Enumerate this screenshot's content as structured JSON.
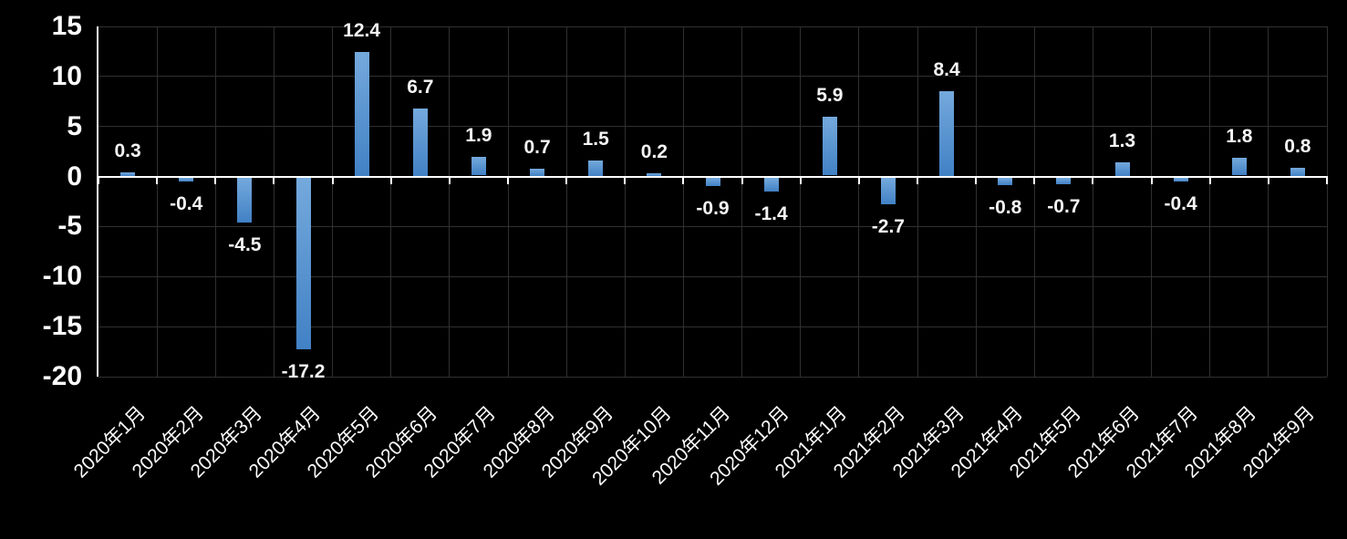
{
  "chart_data": {
    "type": "bar",
    "title": "",
    "xlabel": "",
    "ylabel": "",
    "categories": [
      "2020年1月",
      "2020年2月",
      "2020年3月",
      "2020年4月",
      "2020年5月",
      "2020年6月",
      "2020年7月",
      "2020年8月",
      "2020年9月",
      "2020年10月",
      "2020年11月",
      "2020年12月",
      "2021年1月",
      "2021年2月",
      "2021年3月",
      "2021年4月",
      "2021年5月",
      "2021年6月",
      "2021年7月",
      "2021年8月",
      "2021年9月"
    ],
    "values": [
      0.3,
      -0.4,
      -4.5,
      -17.2,
      12.4,
      6.7,
      1.9,
      0.7,
      1.5,
      0.2,
      -0.9,
      -1.4,
      5.9,
      -2.7,
      8.4,
      -0.8,
      -0.7,
      1.3,
      -0.4,
      1.8,
      0.8
    ],
    "data_labels": [
      "0.3",
      "-0.4",
      "-4.5",
      "-17.2",
      "12.4",
      "6.7",
      "1.9",
      "0.7",
      "1.5",
      "0.2",
      "-0.9",
      "-1.4",
      "5.9",
      "-2.7",
      "8.4",
      "-0.8",
      "-0.7",
      "1.3",
      "-0.4",
      "1.8",
      "0.8"
    ],
    "y_ticks": [
      15,
      10,
      5,
      0,
      -5,
      -10,
      -15,
      -20
    ],
    "ylim": [
      -20,
      15
    ],
    "grid": true,
    "legend_position": "none",
    "colors": {
      "background": "#000000",
      "bar_gradient_top": "#74a9dc",
      "bar_gradient_bottom": "#4181c5",
      "gridline": "#303030",
      "zero_line": "#ffffff",
      "axis_line": "#f2f2f2",
      "label_text": "#ffffff"
    }
  }
}
